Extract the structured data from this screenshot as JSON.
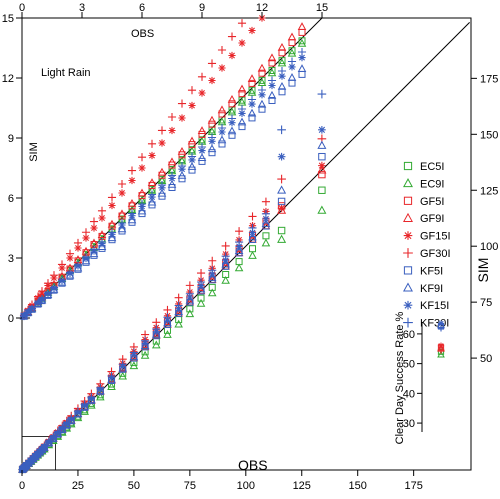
{
  "chart_data": [
    {
      "type": "scatter",
      "panel": "main",
      "xlabel": "OBS",
      "ylabel": "SIM",
      "xlim": [
        0,
        200
      ],
      "ylim": [
        0,
        200
      ],
      "xticks": [
        0,
        25,
        50,
        75,
        100,
        125,
        150,
        175
      ],
      "yticks": [
        50,
        75,
        100,
        125,
        150,
        175
      ],
      "one_to_one_line": true,
      "legend": {
        "position": "right",
        "entries": [
          {
            "name": "EC5I",
            "color": "#33aa33",
            "marker": "square"
          },
          {
            "name": "EC9I",
            "color": "#33aa33",
            "marker": "triangle"
          },
          {
            "name": "GF5I",
            "color": "#e8262a",
            "marker": "square"
          },
          {
            "name": "GF9I",
            "color": "#e8262a",
            "marker": "triangle"
          },
          {
            "name": "GF15I",
            "color": "#e8262a",
            "marker": "star"
          },
          {
            "name": "GF30I",
            "color": "#e8262a",
            "marker": "plus"
          },
          {
            "name": "KF5I",
            "color": "#3a5fbf",
            "marker": "square"
          },
          {
            "name": "KF9I",
            "color": "#3a5fbf",
            "marker": "triangle"
          },
          {
            "name": "KF15I",
            "color": "#3a5fbf",
            "marker": "star"
          },
          {
            "name": "KF30I",
            "color": "#3a5fbf",
            "marker": "plus"
          }
        ]
      },
      "obs": [
        0.2,
        0.5,
        1,
        1.5,
        2,
        3,
        4,
        5,
        6,
        7,
        8,
        9,
        10,
        12,
        14,
        16,
        18,
        20,
        22,
        25,
        28,
        31,
        35,
        40,
        45,
        50,
        55,
        60,
        65,
        70,
        75,
        80,
        85,
        91,
        97,
        103,
        109,
        116,
        134
      ],
      "series": [
        {
          "name": "EC5I",
          "factor": 0.96,
          "tail": [
            {
              "x": 116,
              "y": 107
            },
            {
              "x": 134,
              "y": 125
            }
          ]
        },
        {
          "name": "EC9I",
          "factor": 0.93,
          "tail": [
            {
              "x": 116,
              "y": 103
            },
            {
              "x": 134,
              "y": 116
            }
          ]
        },
        {
          "name": "GF5I",
          "factor": 1.02,
          "tail": [
            {
              "x": 116,
              "y": 118
            },
            {
              "x": 134,
              "y": 132
            }
          ]
        },
        {
          "name": "GF9I",
          "factor": 1.0,
          "tail": [
            {
              "x": 116,
              "y": 116
            },
            {
              "x": 134,
              "y": 134
            }
          ]
        },
        {
          "name": "GF15I",
          "factor": 1.06,
          "tail": [
            {
              "x": 116,
              "y": 117
            },
            {
              "x": 134,
              "y": 136
            }
          ]
        },
        {
          "name": "GF30I",
          "factor": 1.1,
          "tail": [
            {
              "x": 116,
              "y": 130
            },
            {
              "x": 134,
              "y": 148
            }
          ]
        },
        {
          "name": "KF5I",
          "factor": 1.0,
          "tail": [
            {
              "x": 116,
              "y": 120
            },
            {
              "x": 134,
              "y": 140
            }
          ]
        },
        {
          "name": "KF9I",
          "factor": 1.01,
          "tail": [
            {
              "x": 116,
              "y": 125
            },
            {
              "x": 134,
              "y": 145
            }
          ]
        },
        {
          "name": "KF15I",
          "factor": 1.03,
          "tail": [
            {
              "x": 116,
              "y": 140
            },
            {
              "x": 134,
              "y": 152
            }
          ]
        },
        {
          "name": "KF30I",
          "factor": 1.05,
          "tail": [
            {
              "x": 116,
              "y": 152
            },
            {
              "x": 134,
              "y": 168
            }
          ]
        }
      ]
    },
    {
      "type": "scatter",
      "panel": "inset-zoom",
      "title": "Light Rain",
      "xlabel": "OBS",
      "ylabel": "SIM",
      "xlim": [
        0,
        15
      ],
      "ylim": [
        0,
        15
      ],
      "xticks": [
        0,
        3,
        6,
        9,
        12,
        15
      ],
      "yticks": [
        0,
        3,
        6,
        9,
        12,
        15
      ],
      "one_to_one_line": true,
      "obs": [
        0.1,
        0.3,
        0.5,
        0.8,
        1,
        1.3,
        1.6,
        2,
        2.4,
        2.8,
        3.2,
        3.6,
        4,
        4.5,
        5,
        5.5,
        6,
        6.5,
        7,
        7.5,
        8,
        8.5,
        9,
        9.5,
        10,
        10.5,
        11,
        11.5,
        12,
        12.5,
        13,
        13.5,
        14
      ],
      "series": [
        {
          "name": "EC5I",
          "factor": 0.99
        },
        {
          "name": "EC9I",
          "factor": 0.98
        },
        {
          "name": "GF5I",
          "factor": 1.02
        },
        {
          "name": "GF9I",
          "factor": 1.04
        },
        {
          "name": "GF15I",
          "factor": 1.25
        },
        {
          "name": "GF30I",
          "factor": 1.34
        },
        {
          "name": "KF5I",
          "factor": 0.87
        },
        {
          "name": "KF9I",
          "factor": 0.89
        },
        {
          "name": "KF15I",
          "factor": 0.93
        },
        {
          "name": "KF30I",
          "factor": 0.95
        }
      ]
    },
    {
      "type": "scatter",
      "panel": "inset-rate",
      "ylabel": "Clear Day Success Rate %",
      "ylim": [
        27,
        64
      ],
      "yticks": [
        30,
        40,
        50,
        60
      ],
      "points": [
        {
          "name": "EC5I",
          "value": 54.0
        },
        {
          "name": "EC9I",
          "value": 53.0
        },
        {
          "name": "GF5I",
          "value": 55.5
        },
        {
          "name": "GF9I",
          "value": 55.0
        },
        {
          "name": "GF15I",
          "value": 56.0
        },
        {
          "name": "GF30I",
          "value": 54.5
        },
        {
          "name": "KF5I",
          "value": 62.5
        },
        {
          "name": "KF9I",
          "value": 63.0
        },
        {
          "name": "KF15I",
          "value": 63.5
        },
        {
          "name": "KF30I",
          "value": 62.0
        }
      ]
    }
  ]
}
